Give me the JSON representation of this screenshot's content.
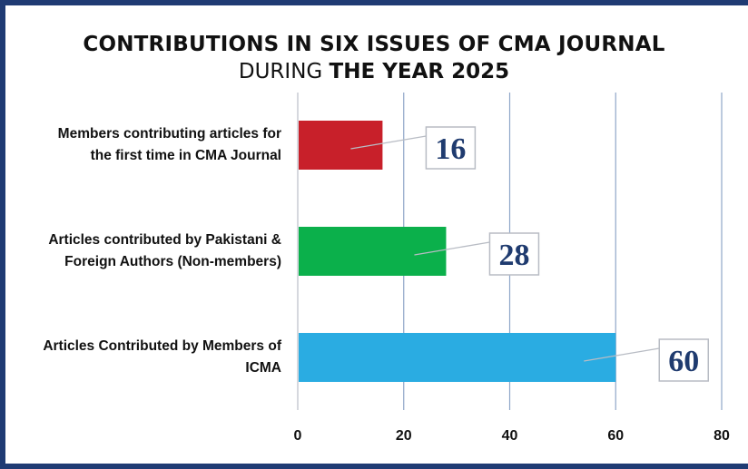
{
  "title": {
    "line1": "CONTRIBUTIONS IN SIX ISSUES OF CMA JOURNAL",
    "line2_prefix": "DURING ",
    "line2_bold": "THE YEAR 2025"
  },
  "chart_data": {
    "type": "bar",
    "orientation": "horizontal",
    "categories": [
      [
        "Members contributing articles for",
        "the first time in CMA Journal"
      ],
      [
        "Articles contributed by Pakistani &",
        "Foreign Authors (Non-members)"
      ],
      [
        "Articles Contributed by Members of",
        "ICMA"
      ]
    ],
    "values": [
      16,
      28,
      60
    ],
    "data_labels": [
      "16",
      "28",
      "60"
    ],
    "colors": [
      "#c8202a",
      "#0bb04b",
      "#2aace2"
    ],
    "xlim": [
      0,
      80
    ],
    "xticks": [
      "0",
      "20",
      "40",
      "60",
      "80"
    ],
    "xtick_values": [
      0,
      20,
      40,
      60,
      80
    ],
    "grid": "vertical",
    "title": "CONTRIBUTIONS IN SIX ISSUES OF CMA JOURNAL DURING THE YEAR 2025",
    "xlabel": "",
    "ylabel": ""
  }
}
